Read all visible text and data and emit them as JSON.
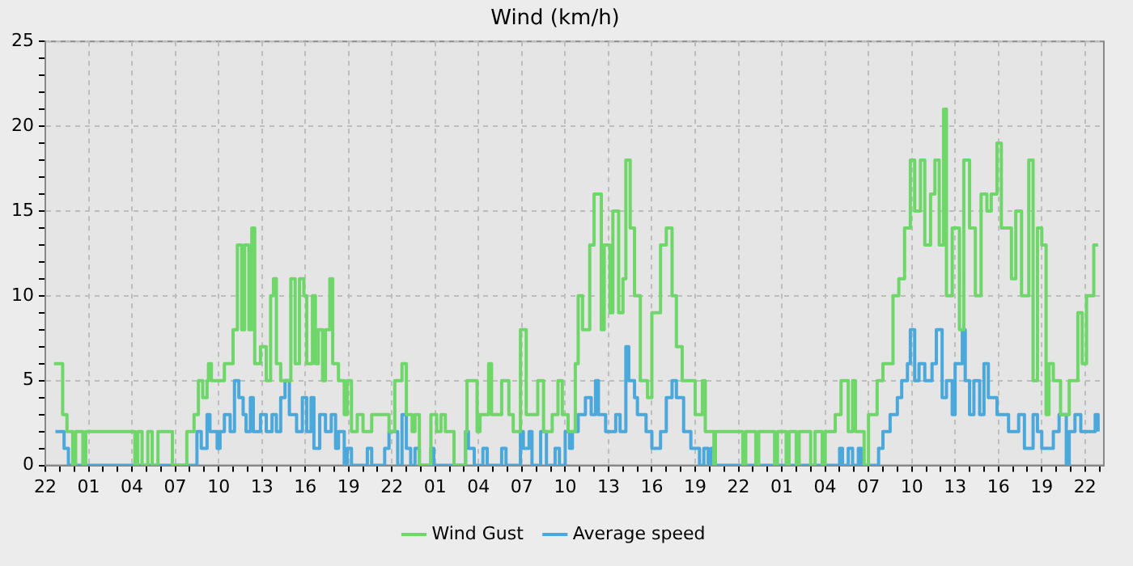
{
  "chart_data": {
    "type": "step",
    "title": "Wind (km/h)",
    "legend": "bottom",
    "grid": true,
    "xlim": [
      "--01-01T22:00",
      "--01-04T23:18"
    ],
    "ylim": [
      0,
      25
    ],
    "xticks": [
      {
        "value": "--01-01T22:00",
        "label": "22"
      },
      {
        "value": "--01-01T23:00",
        "label": null
      },
      {
        "value": "--01-02T00:00",
        "label": null
      },
      {
        "value": "--01-02T01:00",
        "label": "01"
      },
      {
        "value": "--01-02T02:00",
        "label": null
      },
      {
        "value": "--01-02T03:00",
        "label": null
      },
      {
        "value": "--01-02T04:00",
        "label": "04"
      },
      {
        "value": "--01-02T05:00",
        "label": null
      },
      {
        "value": "--01-02T06:00",
        "label": null
      },
      {
        "value": "--01-02T07:00",
        "label": "07"
      },
      {
        "value": "--01-02T08:00",
        "label": null
      },
      {
        "value": "--01-02T09:00",
        "label": null
      },
      {
        "value": "--01-02T10:00",
        "label": "10"
      },
      {
        "value": "--01-02T11:00",
        "label": null
      },
      {
        "value": "--01-02T12:00",
        "label": null
      },
      {
        "value": "--01-02T13:00",
        "label": "13"
      },
      {
        "value": "--01-02T14:00",
        "label": null
      },
      {
        "value": "--01-02T15:00",
        "label": null
      },
      {
        "value": "--01-02T16:00",
        "label": "16"
      },
      {
        "value": "--01-02T17:00",
        "label": null
      },
      {
        "value": "--01-02T18:00",
        "label": null
      },
      {
        "value": "--01-02T19:00",
        "label": "19"
      },
      {
        "value": "--01-02T20:00",
        "label": null
      },
      {
        "value": "--01-02T21:00",
        "label": null
      },
      {
        "value": "--01-02T22:00",
        "label": "22"
      },
      {
        "value": "--01-02T23:00",
        "label": null
      },
      {
        "value": "--01-03T00:00",
        "label": null
      },
      {
        "value": "--01-03T01:00",
        "label": "01"
      },
      {
        "value": "--01-03T02:00",
        "label": null
      },
      {
        "value": "--01-03T03:00",
        "label": null
      },
      {
        "value": "--01-03T04:00",
        "label": "04"
      },
      {
        "value": "--01-03T05:00",
        "label": null
      },
      {
        "value": "--01-03T06:00",
        "label": null
      },
      {
        "value": "--01-03T07:00",
        "label": "07"
      },
      {
        "value": "--01-03T08:00",
        "label": null
      },
      {
        "value": "--01-03T09:00",
        "label": null
      },
      {
        "value": "--01-03T10:00",
        "label": "10"
      },
      {
        "value": "--01-03T11:00",
        "label": null
      },
      {
        "value": "--01-03T12:00",
        "label": null
      },
      {
        "value": "--01-03T13:00",
        "label": "13"
      },
      {
        "value": "--01-03T14:00",
        "label": null
      },
      {
        "value": "--01-03T15:00",
        "label": null
      },
      {
        "value": "--01-03T16:00",
        "label": "16"
      },
      {
        "value": "--01-03T17:00",
        "label": null
      },
      {
        "value": "--01-03T18:00",
        "label": null
      },
      {
        "value": "--01-03T19:00",
        "label": "19"
      },
      {
        "value": "--01-03T20:00",
        "label": null
      },
      {
        "value": "--01-03T21:00",
        "label": null
      },
      {
        "value": "--01-03T22:00",
        "label": "22"
      },
      {
        "value": "--01-03T23:00",
        "label": null
      },
      {
        "value": "--01-04T00:00",
        "label": null
      },
      {
        "value": "--01-04T01:00",
        "label": "01"
      },
      {
        "value": "--01-04T02:00",
        "label": null
      },
      {
        "value": "--01-04T03:00",
        "label": null
      },
      {
        "value": "--01-04T04:00",
        "label": "04"
      },
      {
        "value": "--01-04T05:00",
        "label": null
      },
      {
        "value": "--01-04T06:00",
        "label": null
      },
      {
        "value": "--01-04T07:00",
        "label": "07"
      },
      {
        "value": "--01-04T08:00",
        "label": null
      },
      {
        "value": "--01-04T09:00",
        "label": null
      },
      {
        "value": "--01-04T10:00",
        "label": "10"
      },
      {
        "value": "--01-04T11:00",
        "label": null
      },
      {
        "value": "--01-04T12:00",
        "label": null
      },
      {
        "value": "--01-04T13:00",
        "label": "13"
      },
      {
        "value": "--01-04T14:00",
        "label": null
      },
      {
        "value": "--01-04T15:00",
        "label": null
      },
      {
        "value": "--01-04T16:00",
        "label": "16"
      },
      {
        "value": "--01-04T17:00",
        "label": null
      },
      {
        "value": "--01-04T18:00",
        "label": null
      },
      {
        "value": "--01-04T19:00",
        "label": "19"
      },
      {
        "value": "--01-04T20:00",
        "label": null
      },
      {
        "value": "--01-04T21:00",
        "label": null
      },
      {
        "value": "--01-04T22:00",
        "label": "22"
      },
      {
        "value": "--01-04T23:00",
        "label": null
      }
    ],
    "yticks": [
      0,
      {
        "value": 1,
        "label": null
      },
      {
        "value": 2,
        "label": null
      },
      {
        "value": 3,
        "label": null
      },
      {
        "value": 4,
        "label": null
      },
      5,
      {
        "value": 6,
        "label": null
      },
      {
        "value": 7,
        "label": null
      },
      {
        "value": 8,
        "label": null
      },
      {
        "value": 9,
        "label": null
      },
      10,
      {
        "value": 11,
        "label": null
      },
      {
        "value": 12,
        "label": null
      },
      {
        "value": 13,
        "label": null
      },
      {
        "value": 14,
        "label": null
      },
      15,
      {
        "value": 16,
        "label": null
      },
      {
        "value": 17,
        "label": null
      },
      {
        "value": 18,
        "label": null
      },
      {
        "value": 19,
        "label": null
      },
      20,
      {
        "value": 21,
        "label": null
      },
      {
        "value": 22,
        "label": null
      },
      {
        "value": 23,
        "label": null
      },
      {
        "value": 24,
        "label": null
      },
      25
    ],
    "series": [
      {
        "name": "Wind Gust",
        "color": "#6fd66a",
        "x": [
          "--01-01T22:36",
          "--01-01T23:12",
          "--01-01T23:30",
          "--01-01T23:54",
          "--01-02T00:06",
          "--01-02T00:36",
          "--01-02T00:48",
          "--01-02T04:12",
          "--01-02T04:24",
          "--01-02T04:42",
          "--01-02T05:06",
          "--01-02T05:24",
          "--01-02T05:48",
          "--01-02T06:48",
          "--01-02T07:48",
          "--01-02T08:18",
          "--01-02T08:36",
          "--01-02T08:54",
          "--01-02T09:12",
          "--01-02T09:18",
          "--01-02T09:30",
          "--01-02T10:24",
          "--01-02T11:00",
          "--01-02T11:18",
          "--01-02T11:36",
          "--01-02T11:48",
          "--01-02T12:06",
          "--01-02T12:18",
          "--01-02T12:30",
          "--01-02T12:54",
          "--01-02T13:18",
          "--01-02T13:36",
          "--01-02T13:48",
          "--01-02T14:00",
          "--01-02T14:18",
          "--01-02T15:00",
          "--01-02T15:18",
          "--01-02T15:36",
          "--01-02T15:54",
          "--01-02T16:06",
          "--01-02T16:30",
          "--01-02T16:42",
          "--01-02T16:54",
          "--01-02T17:12",
          "--01-02T17:24",
          "--01-02T17:42",
          "--01-02T17:54",
          "--01-02T18:18",
          "--01-02T18:42",
          "--01-02T18:54",
          "--01-02T19:12",
          "--01-02T19:36",
          "--01-02T20:00",
          "--01-02T20:36",
          "--01-02T21:48",
          "--01-02T22:12",
          "--01-02T22:42",
          "--01-02T23:00",
          "--01-02T23:24",
          "--01-02T23:36",
          "--01-02T23:54",
          "--01-03T00:42",
          "--01-03T01:06",
          "--01-03T01:24",
          "--01-03T01:42",
          "--01-03T02:18",
          "--01-03T03:06",
          "--01-03T03:12",
          "--01-03T03:54",
          "--01-03T04:06",
          "--01-03T04:42",
          "--01-03T04:54",
          "--01-03T05:36",
          "--01-03T06:06",
          "--01-03T06:24",
          "--01-03T06:54",
          "--01-03T07:18",
          "--01-03T08:06",
          "--01-03T08:30",
          "--01-03T09:06",
          "--01-03T09:30",
          "--01-03T09:48",
          "--01-03T10:12",
          "--01-03T10:42",
          "--01-03T10:54",
          "--01-03T11:12",
          "--01-03T11:42",
          "--01-03T12:00",
          "--01-03T12:30",
          "--01-03T12:42",
          "--01-03T13:06",
          "--01-03T13:18",
          "--01-03T13:42",
          "--01-03T14:00",
          "--01-03T14:12",
          "--01-03T14:30",
          "--01-03T14:48",
          "--01-03T15:12",
          "--01-03T15:42",
          "--01-03T16:00",
          "--01-03T16:36",
          "--01-03T17:00",
          "--01-03T17:24",
          "--01-03T17:42",
          "--01-03T18:06",
          "--01-03T19:00",
          "--01-03T19:30",
          "--01-03T19:42",
          "--01-03T20:18",
          "--01-03T20:24",
          "--01-03T22:18",
          "--01-03T22:30",
          "--01-03T23:12",
          "--01-03T23:24",
          "--01-04T00:30",
          "--01-04T00:42",
          "--01-04T01:18",
          "--01-04T01:30",
          "--01-04T02:00",
          "--01-04T02:12",
          "--01-04T03:00",
          "--01-04T03:18",
          "--01-04T03:48",
          "--01-04T04:00",
          "--01-04T04:42",
          "--01-04T05:06",
          "--01-04T05:36",
          "--01-04T05:54",
          "--01-04T06:06",
          "--01-04T06:42",
          "--01-04T07:00",
          "--01-04T07:36",
          "--01-04T08:00",
          "--01-04T08:42",
          "--01-04T09:06",
          "--01-04T09:30",
          "--01-04T09:54",
          "--01-04T10:12",
          "--01-04T10:36",
          "--01-04T10:54",
          "--01-04T11:18",
          "--01-04T11:36",
          "--01-04T11:54",
          "--01-04T12:12",
          "--01-04T12:24",
          "--01-04T12:48",
          "--01-04T13:18",
          "--01-04T13:36",
          "--01-04T14:00",
          "--01-04T14:24",
          "--01-04T14:48",
          "--01-04T15:12",
          "--01-04T15:30",
          "--01-04T15:54",
          "--01-04T16:12",
          "--01-04T16:54",
          "--01-04T17:12",
          "--01-04T17:36",
          "--01-04T18:06",
          "--01-04T18:24",
          "--01-04T18:42",
          "--01-04T19:00",
          "--01-04T19:18",
          "--01-04T19:30",
          "--01-04T19:48",
          "--01-04T20:18",
          "--01-04T20:54",
          "--01-04T21:30",
          "--01-04T21:48",
          "--01-04T22:06",
          "--01-04T22:36",
          "--01-04T22:54"
        ],
        "values": [
          6,
          3,
          2,
          0,
          2,
          0,
          2,
          0,
          2,
          0,
          2,
          0,
          2,
          0,
          2,
          3,
          5,
          4,
          5,
          6,
          5,
          6,
          8,
          13,
          8,
          13,
          8,
          14,
          6,
          7,
          5,
          10,
          11,
          6,
          5,
          11,
          6,
          11,
          10,
          6,
          10,
          6,
          8,
          5,
          8,
          11,
          6,
          5,
          3,
          5,
          2,
          3,
          2,
          3,
          2,
          5,
          6,
          3,
          2,
          3,
          0,
          3,
          2,
          3,
          2,
          0,
          2,
          5,
          2,
          3,
          6,
          3,
          5,
          3,
          2,
          8,
          3,
          5,
          2,
          3,
          5,
          3,
          2,
          6,
          10,
          8,
          13,
          16,
          8,
          13,
          9,
          15,
          9,
          11,
          18,
          14,
          10,
          5,
          4,
          9,
          13,
          14,
          10,
          7,
          5,
          3,
          5,
          2,
          0,
          2,
          0,
          2,
          0,
          2,
          0,
          2,
          0,
          2,
          0,
          2,
          0,
          2,
          0,
          2,
          3,
          5,
          2,
          5,
          2,
          0,
          3,
          5,
          6,
          10,
          11,
          14,
          18,
          15,
          18,
          13,
          16,
          18,
          13,
          21,
          10,
          14,
          8,
          18,
          14,
          10,
          16,
          15,
          16,
          19,
          14,
          11,
          15,
          10,
          18,
          5,
          14,
          13,
          3,
          6,
          5,
          3,
          5,
          9,
          6,
          10,
          13,
          13
        ]
      },
      {
        "name": "Average speed",
        "color": "#4ba8da",
        "x": [
          "--01-01T22:42",
          "--01-01T23:18",
          "--01-01T23:36",
          "--01-02T08:30",
          "--01-02T08:48",
          "--01-02T09:12",
          "--01-02T09:24",
          "--01-02T09:54",
          "--01-02T10:06",
          "--01-02T10:24",
          "--01-02T10:48",
          "--01-02T11:06",
          "--01-02T11:24",
          "--01-02T11:42",
          "--01-02T11:54",
          "--01-02T12:12",
          "--01-02T12:24",
          "--01-02T12:54",
          "--01-02T13:18",
          "--01-02T13:42",
          "--01-02T14:00",
          "--01-02T14:18",
          "--01-02T14:36",
          "--01-02T14:54",
          "--01-02T15:24",
          "--01-02T15:48",
          "--01-02T16:06",
          "--01-02T16:24",
          "--01-02T16:36",
          "--01-02T17:00",
          "--01-02T17:24",
          "--01-02T17:48",
          "--01-02T18:06",
          "--01-02T18:18",
          "--01-02T18:42",
          "--01-02T18:54",
          "--01-02T19:12",
          "--01-02T20:18",
          "--01-02T20:36",
          "--01-02T21:30",
          "--01-02T21:48",
          "--01-02T22:24",
          "--01-02T22:42",
          "--01-02T23:00",
          "--01-02T23:18",
          "--01-02T23:36",
          "--01-02T23:54",
          "--01-03T00:42",
          "--01-03T00:54",
          "--01-03T03:06",
          "--01-03T03:18",
          "--01-03T03:42",
          "--01-03T04:18",
          "--01-03T04:36",
          "--01-03T05:36",
          "--01-03T05:54",
          "--01-03T06:54",
          "--01-03T07:06",
          "--01-03T07:30",
          "--01-03T07:42",
          "--01-03T08:18",
          "--01-03T08:42",
          "--01-03T09:18",
          "--01-03T09:36",
          "--01-03T10:00",
          "--01-03T10:18",
          "--01-03T10:30",
          "--01-03T10:54",
          "--01-03T11:24",
          "--01-03T11:48",
          "--01-03T12:06",
          "--01-03T12:18",
          "--01-03T12:48",
          "--01-03T13:30",
          "--01-03T13:48",
          "--01-03T14:12",
          "--01-03T14:24",
          "--01-03T14:48",
          "--01-03T15:00",
          "--01-03T15:36",
          "--01-03T16:00",
          "--01-03T16:36",
          "--01-03T17:00",
          "--01-03T17:24",
          "--01-03T17:42",
          "--01-03T18:12",
          "--01-03T18:42",
          "--01-03T19:18",
          "--01-03T19:36",
          "--01-03T19:54",
          "--01-03T20:06",
          "--01-03T20:24",
          "--01-04T05:00",
          "--01-04T05:12",
          "--01-04T05:36",
          "--01-04T05:54",
          "--01-04T06:18",
          "--01-04T06:30",
          "--01-04T07:42",
          "--01-04T08:00",
          "--01-04T08:30",
          "--01-04T09:00",
          "--01-04T09:18",
          "--01-04T09:42",
          "--01-04T09:54",
          "--01-04T10:12",
          "--01-04T10:30",
          "--01-04T10:54",
          "--01-04T11:24",
          "--01-04T11:42",
          "--01-04T12:06",
          "--01-04T12:24",
          "--01-04T12:48",
          "--01-04T13:00",
          "--01-04T13:30",
          "--01-04T13:42",
          "--01-04T14:00",
          "--01-04T14:18",
          "--01-04T14:42",
          "--01-04T15:00",
          "--01-04T15:18",
          "--01-04T15:54",
          "--01-04T16:24",
          "--01-04T16:42",
          "--01-04T17:24",
          "--01-04T17:48",
          "--01-04T18:24",
          "--01-04T18:42",
          "--01-04T19:00",
          "--01-04T19:48",
          "--01-04T20:12",
          "--01-04T20:42",
          "--01-04T20:54",
          "--01-04T21:18",
          "--01-04T21:42",
          "--01-04T22:42",
          "--01-04T22:54"
        ],
        "values": [
          2,
          1,
          0,
          2,
          1,
          3,
          2,
          1,
          2,
          3,
          2,
          5,
          4,
          3,
          2,
          4,
          2,
          3,
          2,
          3,
          2,
          4,
          5,
          3,
          2,
          4,
          2,
          4,
          1,
          3,
          2,
          3,
          1,
          2,
          0,
          1,
          0,
          1,
          0,
          1,
          2,
          0,
          3,
          1,
          0,
          1,
          0,
          1,
          0,
          2,
          1,
          0,
          1,
          0,
          1,
          0,
          2,
          1,
          2,
          0,
          2,
          0,
          1,
          0,
          2,
          1,
          2,
          3,
          4,
          3,
          5,
          3,
          2,
          3,
          2,
          7,
          5,
          4,
          3,
          2,
          1,
          2,
          4,
          5,
          4,
          2,
          1,
          0,
          1,
          0,
          1,
          0,
          1,
          0,
          1,
          0,
          1,
          0,
          1,
          2,
          3,
          4,
          5,
          6,
          8,
          5,
          6,
          5,
          6,
          8,
          4,
          5,
          3,
          6,
          8,
          5,
          3,
          5,
          3,
          6,
          4,
          3,
          3,
          2,
          3,
          1,
          3,
          2,
          1,
          2,
          3,
          0,
          2,
          3,
          2,
          3,
          2
        ]
      }
    ]
  }
}
